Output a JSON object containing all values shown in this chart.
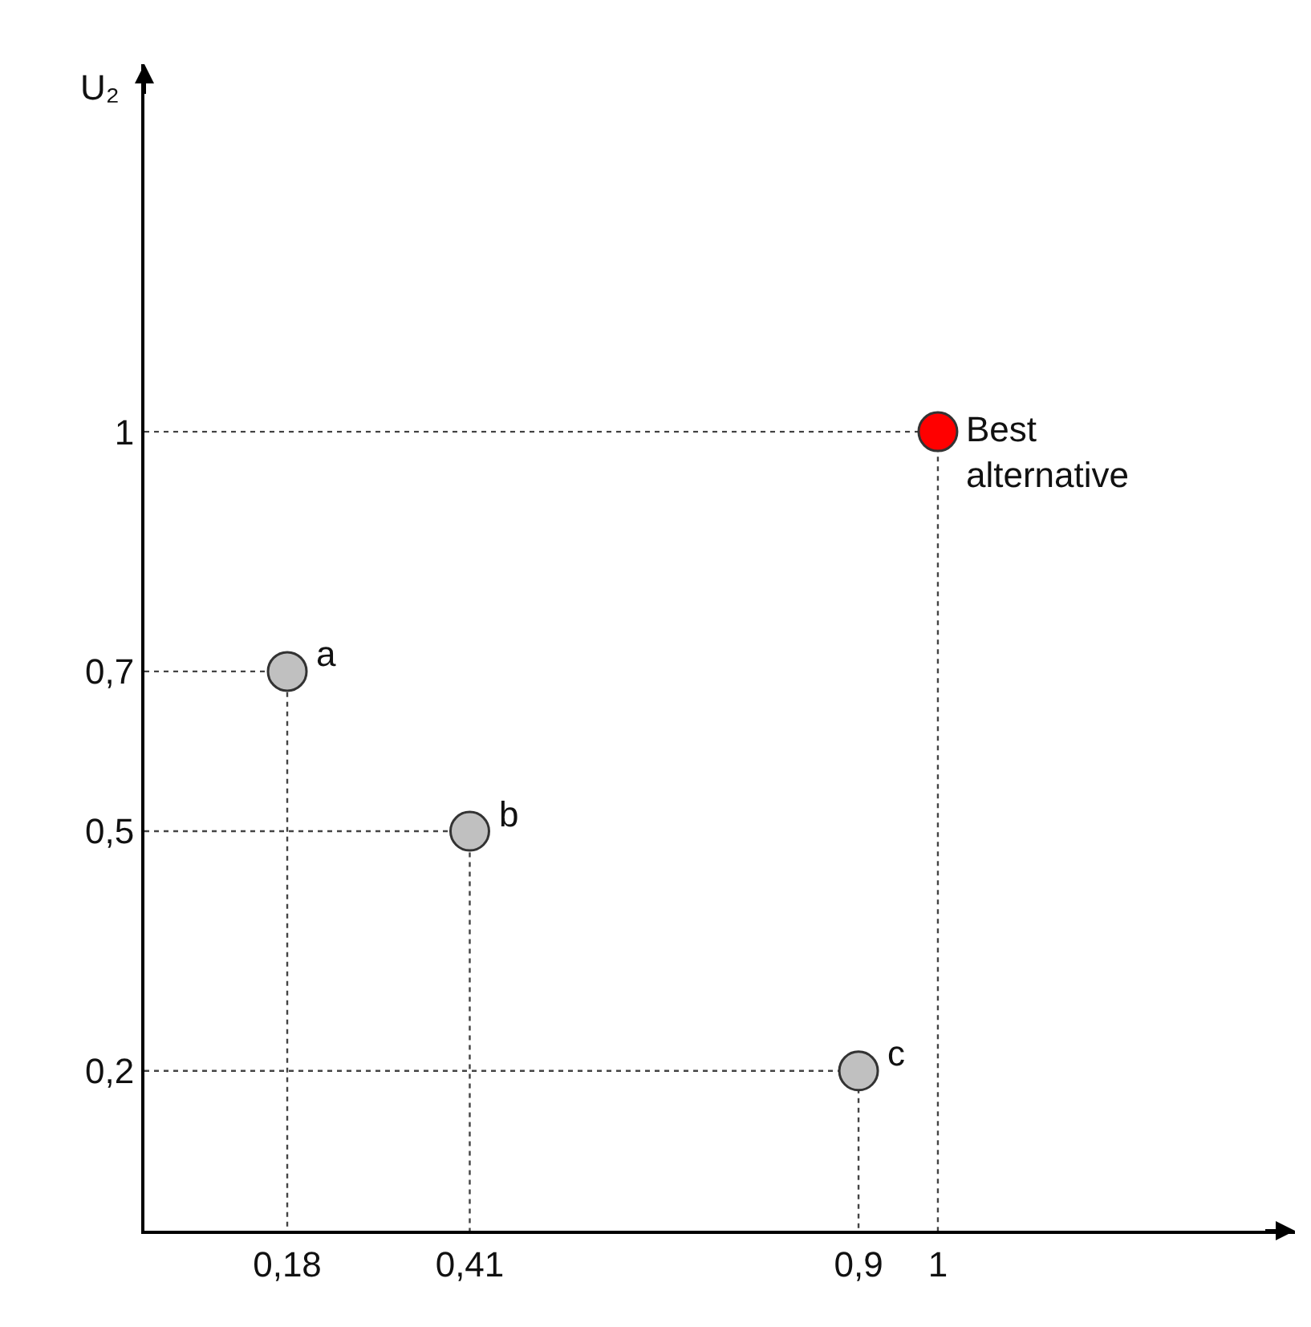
{
  "chart_data": {
    "type": "scatter",
    "ylabel": "U₂",
    "xlim": [
      0,
      1.45
    ],
    "ylim": [
      0,
      1.46
    ],
    "xticks": [
      {
        "value": 0.18,
        "label": "0,18"
      },
      {
        "value": 0.41,
        "label": "0,41"
      },
      {
        "value": 0.9,
        "label": "0,9"
      },
      1
    ],
    "yticks": [
      {
        "value": 0.2,
        "label": "0,2"
      },
      {
        "value": 0.5,
        "label": "0,5"
      },
      {
        "value": 0.7,
        "label": "0,7"
      },
      1
    ],
    "series": [
      {
        "type": "line",
        "line_style": "dotted",
        "color": "#444444",
        "marker": "none",
        "x": [
          0,
          0.18,
          0.18
        ],
        "values": [
          0.7,
          0.7,
          0
        ]
      },
      {
        "type": "line",
        "line_style": "dotted",
        "color": "#444444",
        "marker": "none",
        "x": [
          0,
          0.41,
          0.41
        ],
        "values": [
          0.5,
          0.5,
          0
        ]
      },
      {
        "type": "line",
        "line_style": "dotted",
        "color": "#444444",
        "marker": "none",
        "x": [
          0,
          0.9,
          0.9
        ],
        "values": [
          0.2,
          0.2,
          0
        ]
      },
      {
        "type": "line",
        "line_style": "dotted",
        "color": "#444444",
        "marker": "none",
        "x": [
          0,
          1,
          1
        ],
        "values": [
          1,
          1,
          0
        ]
      },
      {
        "color": "#c0c0c0",
        "x": [
          0.18,
          0.41,
          0.9
        ],
        "values": [
          0.7,
          0.5,
          0.2
        ]
      },
      {
        "color": "#ff0000",
        "x": [
          1
        ],
        "values": [
          1
        ]
      }
    ],
    "annotations": [
      {
        "text": "a",
        "x": 0.18,
        "y": 0.7
      },
      {
        "text": "b",
        "x": 0.41,
        "y": 0.5
      },
      {
        "text": "c",
        "x": 0.9,
        "y": 0.2
      },
      {
        "text": "Best\nalternative",
        "x": 1,
        "y": 1
      }
    ],
    "marker": "circle"
  }
}
